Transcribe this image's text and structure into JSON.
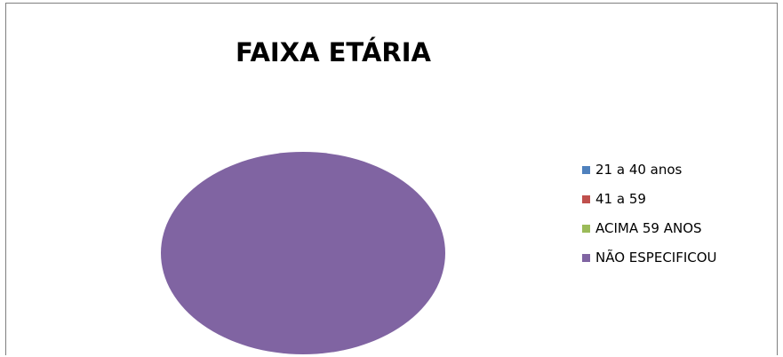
{
  "chart_data": {
    "type": "pie",
    "title": "FAIXA ETÁRIA",
    "legend_position": "right",
    "slices": [
      {
        "label": "21  a 40 anos",
        "value": 0,
        "color": "#4f81bd"
      },
      {
        "label": "41 a 59",
        "value": 0,
        "color": "#c0504d"
      },
      {
        "label": "ACIMA 59 ANOS",
        "value": 0,
        "color": "#9bbb59"
      },
      {
        "label": "NÃO ESPECIFICOU",
        "value": 100,
        "color": "#8064a2"
      }
    ]
  }
}
